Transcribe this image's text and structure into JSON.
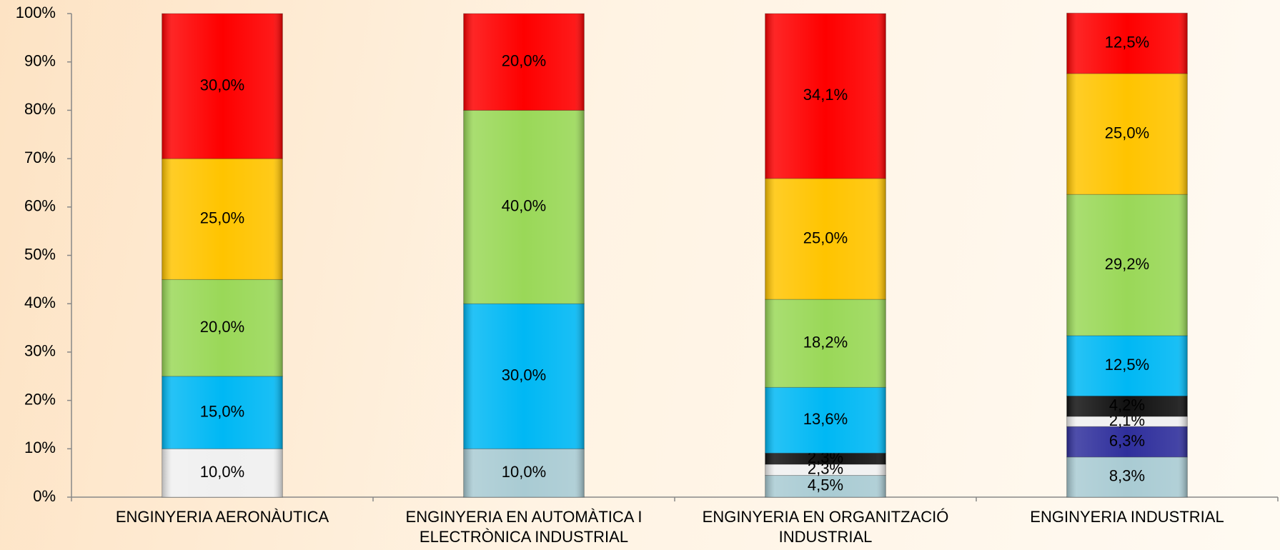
{
  "chart_data": {
    "type": "stacked_bar",
    "categories": [
      "ENGINYERIA AERONÀUTICA",
      "ENGINYERIA EN AUTOMÀTICA I ELECTRÒNICA INDUSTRIAL",
      "ENGINYERIA EN ORGANITZACIÓ INDUSTRIAL",
      "ENGINYERIA INDUSTRIAL"
    ],
    "series": [
      {
        "color": "#a9cbd3",
        "values": [
          null,
          10.0,
          4.5,
          8.3
        ],
        "value_labels": [
          null,
          "10,0%",
          "4,5%",
          "8,3%"
        ]
      },
      {
        "color": "#2f2f9c",
        "values": [
          null,
          null,
          null,
          6.3
        ],
        "value_labels": [
          null,
          null,
          null,
          "6,3%"
        ]
      },
      {
        "color": "#f0f0f0",
        "values": [
          10.0,
          null,
          2.3,
          2.1
        ],
        "value_labels": [
          "10,0%",
          null,
          "2,3%",
          "2,1%"
        ]
      },
      {
        "color": "#111111",
        "values": [
          null,
          null,
          2.3,
          4.2
        ],
        "value_labels": [
          null,
          null,
          "2,3%",
          "4,2%"
        ]
      },
      {
        "color": "#00b8f4",
        "values": [
          15.0,
          30.0,
          13.6,
          12.5
        ],
        "value_labels": [
          "15,0%",
          "30,0%",
          "13,6%",
          "12,5%"
        ]
      },
      {
        "color": "#9ad858",
        "values": [
          20.0,
          40.0,
          18.2,
          29.2
        ],
        "value_labels": [
          "20,0%",
          "40,0%",
          "18,2%",
          "29,2%"
        ]
      },
      {
        "color": "#ffc400",
        "values": [
          25.0,
          null,
          25.0,
          25.0
        ],
        "value_labels": [
          "25,0%",
          null,
          "25,0%",
          "25,0%"
        ]
      },
      {
        "color": "#fe0000",
        "values": [
          30.0,
          20.0,
          34.1,
          12.5
        ],
        "value_labels": [
          "30,0%",
          "20,0%",
          "34,1%",
          "12,5%"
        ]
      }
    ],
    "ylim": [
      0,
      100
    ],
    "yticks": [
      {
        "value": 0,
        "label": "0%"
      },
      {
        "value": 10,
        "label": "10%"
      },
      {
        "value": 20,
        "label": "20%"
      },
      {
        "value": 30,
        "label": "30%"
      },
      {
        "value": 40,
        "label": "40%"
      },
      {
        "value": 50,
        "label": "50%"
      },
      {
        "value": 60,
        "label": "60%"
      },
      {
        "value": 70,
        "label": "70%"
      },
      {
        "value": 80,
        "label": "80%"
      },
      {
        "value": 90,
        "label": "90%"
      },
      {
        "value": 100,
        "label": "100%"
      }
    ],
    "grid": false
  }
}
